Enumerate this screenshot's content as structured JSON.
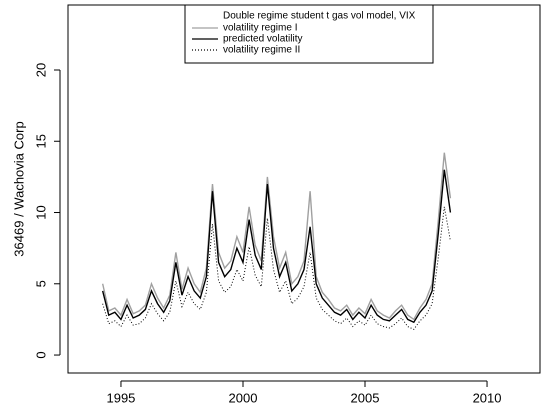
{
  "chart_data": {
    "type": "line",
    "legend_title": "Double regime student t gas vol model, VIX",
    "y_label": "36469 / Wachovia Corp",
    "x": [
      1994.25,
      1994.5,
      1994.75,
      1995,
      1995.25,
      1995.5,
      1995.75,
      1996,
      1996.25,
      1996.5,
      1996.75,
      1997,
      1997.25,
      1997.5,
      1997.75,
      1998,
      1998.25,
      1998.5,
      1998.75,
      1999,
      1999.25,
      1999.5,
      1999.75,
      2000,
      2000.25,
      2000.5,
      2000.75,
      2001,
      2001.25,
      2001.5,
      2001.75,
      2002,
      2002.25,
      2002.5,
      2002.75,
      2003,
      2003.25,
      2003.5,
      2003.75,
      2004,
      2004.25,
      2004.5,
      2004.75,
      2005,
      2005.25,
      2005.5,
      2005.75,
      2006,
      2006.25,
      2006.5,
      2006.75,
      2007,
      2007.25,
      2007.5,
      2007.75,
      2008,
      2008.25,
      2008.5
    ],
    "series": [
      {
        "name": "volatility regime I",
        "color": "#a0a0a0",
        "dash": "solid",
        "values": [
          5.0,
          3.1,
          3.3,
          2.8,
          3.9,
          2.9,
          3.1,
          3.5,
          5.0,
          4.0,
          3.3,
          4.2,
          7.2,
          4.6,
          6.1,
          5.0,
          4.4,
          6.1,
          12.0,
          7.2,
          6.1,
          6.6,
          8.3,
          7.2,
          10.4,
          7.7,
          6.6,
          12.5,
          8.3,
          6.1,
          7.2,
          5.0,
          5.5,
          6.6,
          11.5,
          5.5,
          4.4,
          3.9,
          3.3,
          3.1,
          3.5,
          2.8,
          3.3,
          2.9,
          3.9,
          3.1,
          2.8,
          2.6,
          3.1,
          3.5,
          2.8,
          2.5,
          3.3,
          3.9,
          5.0,
          9.4,
          14.2,
          11.0
        ]
      },
      {
        "name": "predicted volatility",
        "color": "#000000",
        "dash": "solid",
        "values": [
          4.5,
          2.8,
          3.0,
          2.5,
          3.5,
          2.6,
          2.8,
          3.2,
          4.5,
          3.6,
          3.0,
          3.8,
          6.5,
          4.2,
          5.5,
          4.5,
          4.0,
          5.5,
          11.5,
          6.5,
          5.5,
          6.0,
          7.5,
          6.5,
          9.5,
          7.0,
          6.0,
          12.0,
          7.5,
          5.5,
          6.5,
          4.5,
          5.0,
          6.0,
          9.0,
          5.0,
          4.0,
          3.5,
          3.0,
          2.8,
          3.2,
          2.5,
          3.0,
          2.6,
          3.5,
          2.8,
          2.5,
          2.4,
          2.8,
          3.2,
          2.5,
          2.3,
          3.0,
          3.5,
          4.5,
          8.5,
          13.0,
          10.0
        ]
      },
      {
        "name": "volatility regime II",
        "color": "#000000",
        "dash": "dotted",
        "values": [
          3.6,
          2.2,
          2.4,
          2.0,
          2.8,
          2.1,
          2.2,
          2.6,
          3.6,
          2.9,
          2.4,
          3.0,
          5.2,
          3.4,
          4.4,
          3.6,
          3.2,
          4.4,
          9.2,
          5.2,
          4.4,
          4.8,
          6.0,
          5.2,
          7.6,
          5.6,
          4.8,
          9.6,
          6.0,
          4.4,
          5.2,
          3.6,
          4.0,
          4.8,
          7.2,
          4.0,
          3.2,
          2.8,
          2.4,
          2.2,
          2.6,
          2.0,
          2.4,
          2.1,
          2.8,
          2.2,
          2.0,
          1.9,
          2.2,
          2.6,
          2.0,
          1.8,
          2.4,
          2.8,
          3.6,
          6.8,
          10.4,
          8.0
        ]
      }
    ],
    "xlim": [
      1992.83,
      2012.17
    ],
    "xticks": [
      1995,
      2000,
      2005,
      2010
    ],
    "ylim": [
      -1.26,
      24.56
    ],
    "yticks": [
      0,
      5,
      10,
      15,
      20
    ]
  }
}
